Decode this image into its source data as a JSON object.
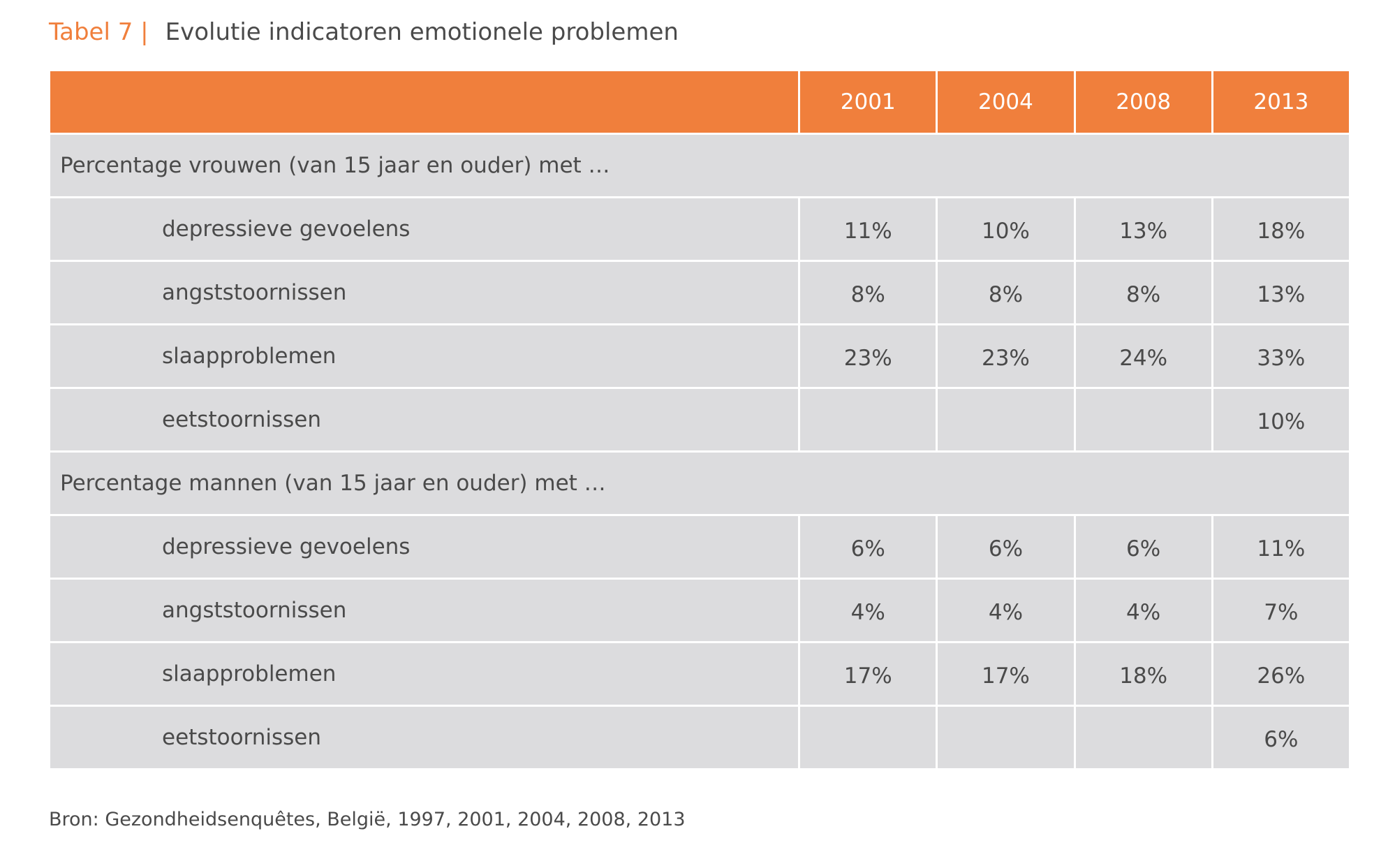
{
  "caption": {
    "label": "Tabel 7 |",
    "title": "Evolutie indicatoren emotionele problemen"
  },
  "table": {
    "years": [
      "2001",
      "2004",
      "2008",
      "2013"
    ],
    "groups": [
      {
        "label": "Percentage vrouwen (van 15 jaar en ouder) met …",
        "rows": [
          {
            "name": "depressieve gevoelens",
            "values": [
              "11%",
              "10%",
              "13%",
              "18%"
            ]
          },
          {
            "name": "angststoornissen",
            "values": [
              "8%",
              "8%",
              "8%",
              "13%"
            ]
          },
          {
            "name": "slaapproblemen",
            "values": [
              "23%",
              "23%",
              "24%",
              "33%"
            ]
          },
          {
            "name": "eetstoornissen",
            "values": [
              "",
              "",
              "",
              "10%"
            ]
          }
        ]
      },
      {
        "label": "Percentage mannen (van 15 jaar en ouder) met …",
        "rows": [
          {
            "name": "depressieve gevoelens",
            "values": [
              "6%",
              "6%",
              "6%",
              "11%"
            ]
          },
          {
            "name": "angststoornissen",
            "values": [
              "4%",
              "4%",
              "4%",
              "7%"
            ]
          },
          {
            "name": "slaapproblemen",
            "values": [
              "17%",
              "17%",
              "18%",
              "26%"
            ]
          },
          {
            "name": "eetstoornissen",
            "values": [
              "",
              "",
              "",
              "6%"
            ]
          }
        ]
      }
    ]
  },
  "source": "Bron: Gezondheidsenquêtes, België, 1997, 2001, 2004, 2008, 2013",
  "colors": {
    "accent": "#f07f3c",
    "cell": "#dcdcde",
    "text": "#4a4a4a"
  }
}
